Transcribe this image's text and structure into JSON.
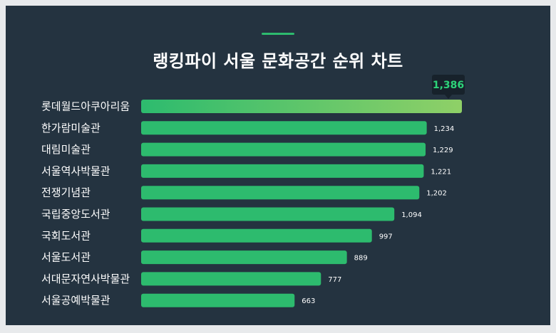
{
  "title": "랭킹파이 서울 문화공간 순위 차트",
  "colors": {
    "background": "#243340",
    "bar": "#2dbb6e",
    "top_bar_gradient_end": "#8fd067",
    "tooltip_bg": "#17222b",
    "tooltip_text": "#2dd47a"
  },
  "chart_data": {
    "type": "bar",
    "orientation": "horizontal",
    "title": "랭킹파이 서울 문화공간 순위 차트",
    "categories": [
      "롯데월드아쿠아리움",
      "한가람미술관",
      "대림미술관",
      "서울역사박물관",
      "전쟁기념관",
      "국립중앙도서관",
      "국회도서관",
      "서울도서관",
      "서대문자연사박물관",
      "서울공예박물관"
    ],
    "values": [
      1386,
      1234,
      1229,
      1221,
      1202,
      1094,
      997,
      889,
      777,
      663
    ],
    "value_labels": [
      "1,386",
      "1,234",
      "1,229",
      "1,221",
      "1,202",
      "1,094",
      "997",
      "889",
      "777",
      "663"
    ],
    "highlight_index": 0,
    "xlim": [
      0,
      1386
    ],
    "grid": false,
    "legend": "none"
  }
}
